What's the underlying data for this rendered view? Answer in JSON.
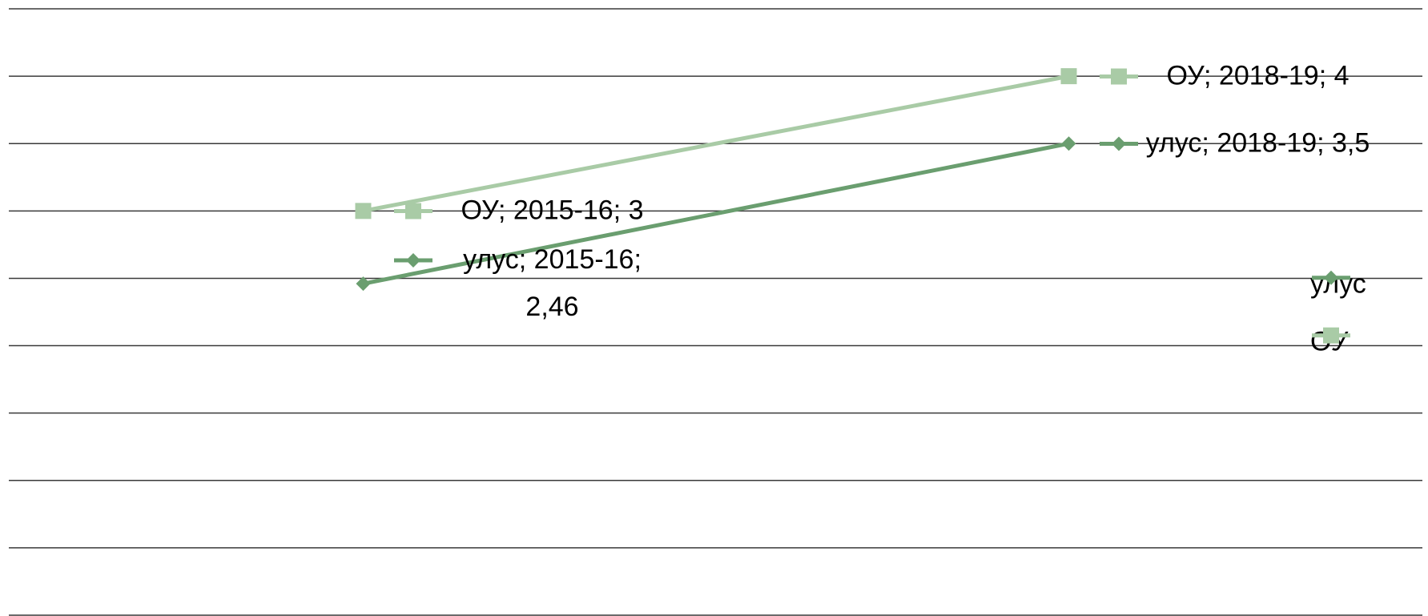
{
  "chart_data": {
    "type": "line",
    "categories": [
      "2015-16",
      "2018-19"
    ],
    "series": [
      {
        "name": "улус",
        "color": "#6a9e6f",
        "marker": "diamond",
        "values": [
          2.46,
          3.5
        ],
        "value_labels": [
          "улус; 2015-16; 2,46",
          "улус; 2018-19; 3,5"
        ]
      },
      {
        "name": "ОУ",
        "color": "#a9cba6",
        "marker": "square",
        "values": [
          3,
          4
        ],
        "value_labels": [
          "ОУ; 2015-16; 3",
          "ОУ; 2018-19; 4"
        ]
      }
    ],
    "ylim": [
      0,
      4.5
    ],
    "yticks": [
      0,
      0.5,
      1,
      1.5,
      2,
      2.5,
      3,
      3.5,
      4,
      4.5
    ],
    "grid": true,
    "legend": "right"
  }
}
